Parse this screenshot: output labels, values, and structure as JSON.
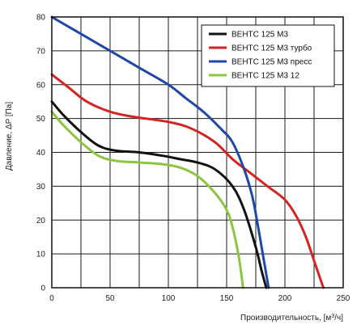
{
  "chart_data": {
    "type": "line",
    "xlabel": "Производительность, [м",
    "xlabel_sup": "3",
    "xlabel_tail": "/ч]",
    "ylabel": "Давление, ΔP [Па]",
    "xlim": [
      0,
      250
    ],
    "ylim": [
      0,
      80
    ],
    "xticks": [
      0,
      50,
      100,
      150,
      200,
      250
    ],
    "yticks": [
      0,
      10,
      20,
      30,
      40,
      50,
      60,
      70,
      80
    ],
    "minor_grid_step_x": 25,
    "grid": true,
    "legend_position": "top-right",
    "series": [
      {
        "name": "ВЕНТС 125 М3",
        "color": "#111111",
        "points": [
          [
            0,
            55
          ],
          [
            10,
            51
          ],
          [
            25,
            46
          ],
          [
            40,
            42
          ],
          [
            55,
            40.5
          ],
          [
            75,
            40
          ],
          [
            95,
            39
          ],
          [
            110,
            38
          ],
          [
            125,
            37
          ],
          [
            140,
            35
          ],
          [
            155,
            30
          ],
          [
            165,
            23
          ],
          [
            175,
            12
          ],
          [
            180,
            5
          ],
          [
            184,
            0
          ]
        ]
      },
      {
        "name": "ВЕНТС 125 М3 турбо",
        "color": "#d62222",
        "points": [
          [
            0,
            63
          ],
          [
            15,
            59
          ],
          [
            30,
            55
          ],
          [
            50,
            52
          ],
          [
            70,
            50.5
          ],
          [
            100,
            49
          ],
          [
            120,
            47
          ],
          [
            140,
            43
          ],
          [
            155,
            38
          ],
          [
            170,
            34
          ],
          [
            185,
            30
          ],
          [
            200,
            26
          ],
          [
            210,
            21
          ],
          [
            218,
            15
          ],
          [
            225,
            8
          ],
          [
            230,
            3
          ],
          [
            233,
            0
          ]
        ]
      },
      {
        "name": "ВЕНТС 125 М3 пресс",
        "color": "#1f47a8",
        "points": [
          [
            0,
            80
          ],
          [
            25,
            75
          ],
          [
            50,
            70
          ],
          [
            75,
            65
          ],
          [
            100,
            60
          ],
          [
            115,
            56
          ],
          [
            130,
            52
          ],
          [
            145,
            47
          ],
          [
            155,
            43
          ],
          [
            165,
            35
          ],
          [
            172,
            27
          ],
          [
            177,
            18
          ],
          [
            181,
            10
          ],
          [
            184,
            4
          ],
          [
            186,
            0
          ]
        ]
      },
      {
        "name": "ВЕНТС 125 М3  12",
        "color": "#8cc63f",
        "points": [
          [
            0,
            52
          ],
          [
            10,
            48
          ],
          [
            25,
            43
          ],
          [
            40,
            39
          ],
          [
            55,
            37.5
          ],
          [
            75,
            37
          ],
          [
            95,
            36.5
          ],
          [
            110,
            35.5
          ],
          [
            125,
            33
          ],
          [
            140,
            28
          ],
          [
            150,
            23
          ],
          [
            155,
            18
          ],
          [
            160,
            10
          ],
          [
            163,
            3
          ],
          [
            164,
            0
          ]
        ]
      }
    ]
  }
}
